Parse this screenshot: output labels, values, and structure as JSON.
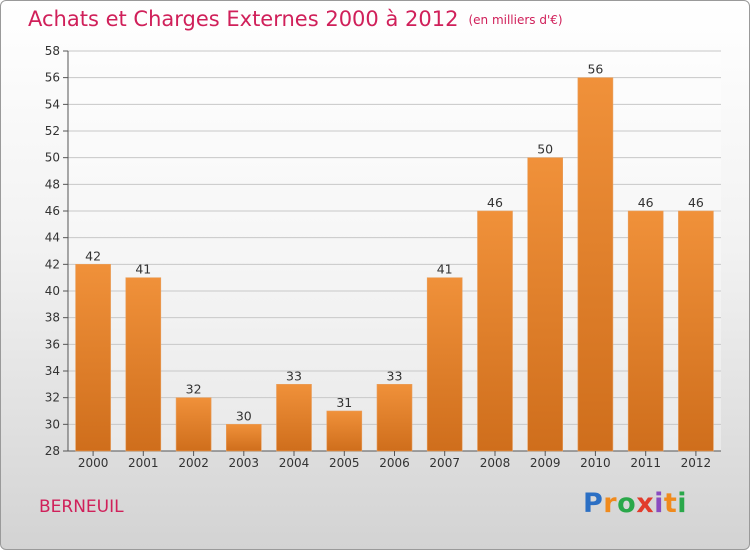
{
  "title": "Achats et Charges Externes 2000 à 2012",
  "unit": "(en milliers d'€)",
  "commune": "BERNEUIL",
  "logo": {
    "letters": [
      "P",
      "r",
      "o",
      "x",
      "i",
      "t",
      "i"
    ],
    "colors": [
      "#2b6fc4",
      "#f08a1c",
      "#2aa84a",
      "#e23c2c",
      "#8a4cc0",
      "#f08a1c",
      "#2aa84a"
    ]
  },
  "colors": {
    "bar": "#f0913a",
    "bar_dark": "#cf6e1c",
    "title": "#d0205a"
  },
  "chart_data": {
    "type": "bar",
    "title": "Achats et Charges Externes 2000 à 2012",
    "subtitle": "(en milliers d'€)",
    "categories": [
      "2000",
      "2001",
      "2002",
      "2003",
      "2004",
      "2005",
      "2006",
      "2007",
      "2008",
      "2009",
      "2010",
      "2011",
      "2012"
    ],
    "values": [
      42,
      41,
      32,
      30,
      33,
      31,
      33,
      41,
      46,
      50,
      56,
      46,
      46
    ],
    "ylim": [
      28,
      58
    ],
    "yticks": [
      28,
      30,
      32,
      34,
      36,
      38,
      40,
      42,
      44,
      46,
      48,
      50,
      52,
      54,
      56,
      58
    ],
    "grid": true,
    "data_labels": true
  }
}
